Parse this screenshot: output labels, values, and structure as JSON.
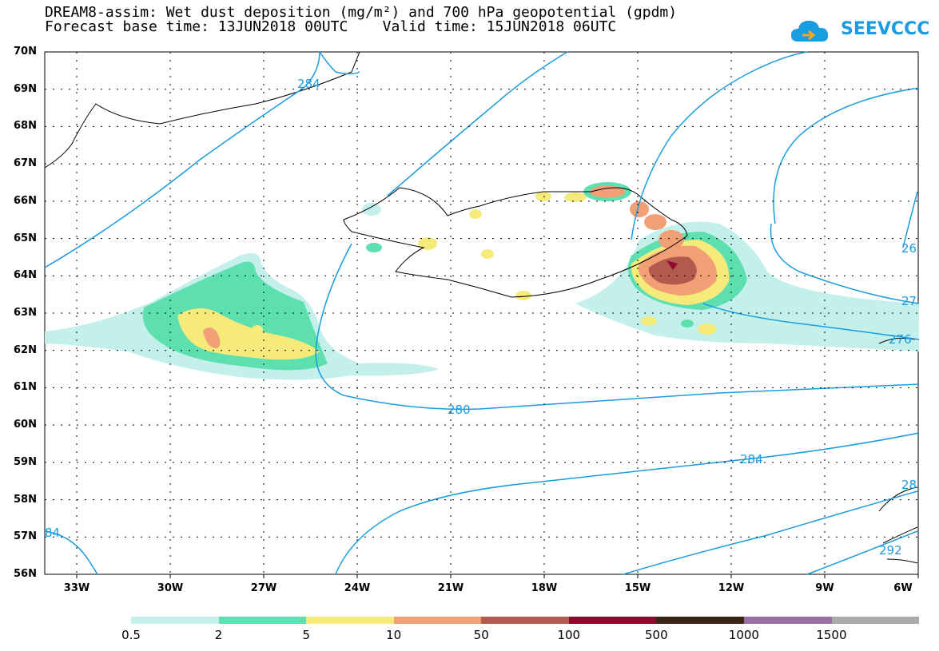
{
  "title": {
    "line1": "DREAM8-assim: Wet dust deposition (mg/m²) and 700 hPa geopotential (gpdm)",
    "line2": "Forecast base time: 13JUN2018 00UTC    Valid time: 15JUN2018 06UTC"
  },
  "logo": {
    "text": "SEEVCCC",
    "icon": "cloud-icon",
    "color": "#1a9ce0"
  },
  "map": {
    "lat_labels": [
      "70N",
      "69N",
      "68N",
      "67N",
      "66N",
      "65N",
      "64N",
      "63N",
      "62N",
      "61N",
      "60N",
      "59N",
      "58N",
      "57N",
      "56N"
    ],
    "lon_labels": [
      "33W",
      "30W",
      "27W",
      "24W",
      "21W",
      "18W",
      "15W",
      "12W",
      "9W",
      "6W"
    ],
    "contour_color": "#1a9ce0",
    "contour_labels": [
      "284",
      "280",
      "284",
      "26",
      "27",
      "276",
      "28",
      "292",
      "84"
    ]
  },
  "colorbar": {
    "colors": [
      "#c4f0ec",
      "#5ddfb0",
      "#f6ea7a",
      "#f0a074",
      "#b25a4d",
      "#8c0a2e",
      "#3a2418",
      "#9a6fa3",
      "#aaaaaa"
    ],
    "labels": [
      "0.5",
      "2",
      "5",
      "10",
      "50",
      "100",
      "500",
      "1000",
      "1500"
    ]
  }
}
